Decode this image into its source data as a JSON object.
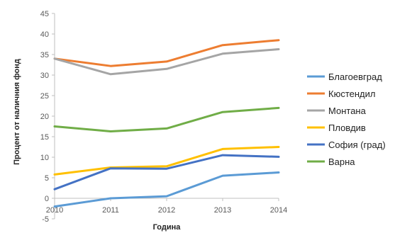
{
  "chart_data": {
    "type": "line",
    "title": "",
    "xlabel": "Година",
    "ylabel": "Процент от наличния фонд",
    "categories": [
      "2010",
      "2011",
      "2012",
      "2013",
      "2014"
    ],
    "ylim": [
      -5,
      45
    ],
    "yticks": [
      -5,
      0,
      5,
      10,
      15,
      20,
      25,
      30,
      35,
      40,
      45
    ],
    "ytick_labels": [
      "-5",
      "0",
      "5",
      "10",
      "15",
      "20",
      "25",
      "30",
      "35",
      "40",
      "45"
    ],
    "grid": false,
    "legend_position": "right",
    "series": [
      {
        "name": "Благоевград",
        "color": "#5B9BD5",
        "values": [
          -2.0,
          0.0,
          0.5,
          5.5,
          6.3
        ]
      },
      {
        "name": "Кюстендил",
        "color": "#ED7D31",
        "values": [
          34.0,
          32.2,
          33.3,
          37.3,
          38.5
        ]
      },
      {
        "name": "Монтана",
        "color": "#A5A5A5",
        "values": [
          34.0,
          30.2,
          31.5,
          35.2,
          36.3
        ]
      },
      {
        "name": "Пловдив",
        "color": "#FFC000",
        "values": [
          5.8,
          7.5,
          7.8,
          12.0,
          12.5
        ]
      },
      {
        "name": "София (град)",
        "color": "#4472C4",
        "values": [
          2.2,
          7.3,
          7.2,
          10.5,
          10.1
        ]
      },
      {
        "name": "Варна",
        "color": "#70AD47",
        "values": [
          17.5,
          16.3,
          17.0,
          21.0,
          22.0
        ]
      }
    ]
  }
}
